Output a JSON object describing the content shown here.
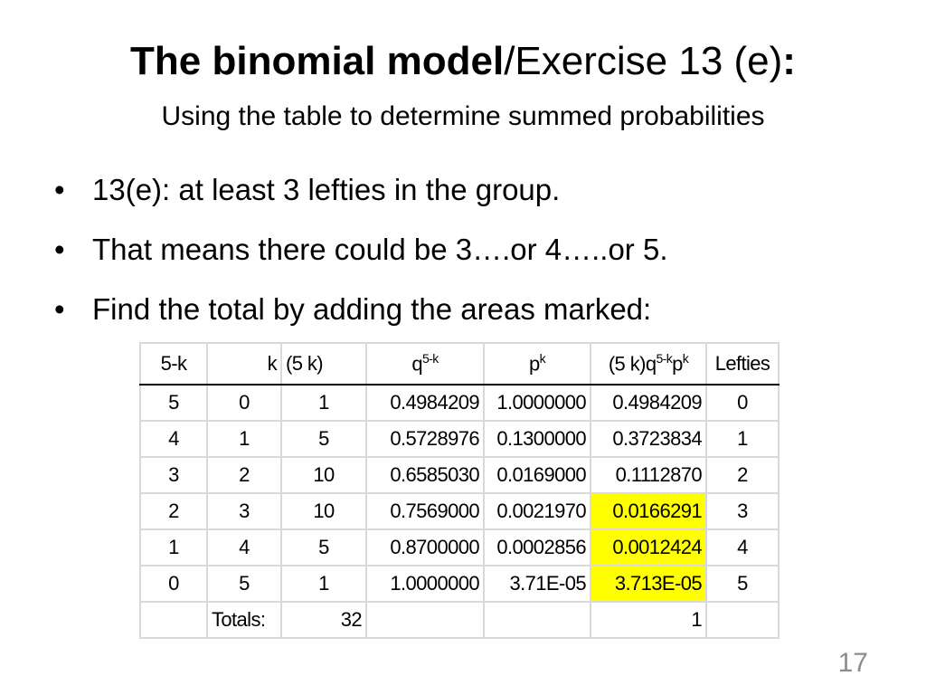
{
  "title": {
    "bold": "The binomial model",
    "rest_before_colon": "/Exercise 13 (e)",
    "colon": ":"
  },
  "subtitle": "Using the table to determine summed probabilities",
  "bullets": [
    "13(e): at least 3 lefties in the group.",
    "That means there could be 3….or 4…..or 5.",
    "Find the total by adding the areas marked:"
  ],
  "table": {
    "headers": {
      "col_5k": "5-k",
      "col_k": "k",
      "col_choose": "(5   k)",
      "col_q_base": "q",
      "col_q_sup": "5-k",
      "col_p_base": "p",
      "col_p_sup": "k",
      "col_prod_a": "(5 k)q",
      "col_prod_sup1": "5-k",
      "col_prod_b": "p",
      "col_prod_sup2": "k",
      "col_lefties": "Lefties"
    },
    "rows": [
      {
        "c1": "5",
        "c2": "0",
        "c3": "1",
        "c4": "0.4984209",
        "c5": "1.0000000",
        "c6": "0.4984209",
        "c7": "0",
        "highlight": false
      },
      {
        "c1": "4",
        "c2": "1",
        "c3": "5",
        "c4": "0.5728976",
        "c5": "0.1300000",
        "c6": "0.3723834",
        "c7": "1",
        "highlight": false
      },
      {
        "c1": "3",
        "c2": "2",
        "c3": "10",
        "c4": "0.6585030",
        "c5": "0.0169000",
        "c6": "0.1112870",
        "c7": "2",
        "highlight": false
      },
      {
        "c1": "2",
        "c2": "3",
        "c3": "10",
        "c4": "0.7569000",
        "c5": "0.0021970",
        "c6": "0.0166291",
        "c7": "3",
        "highlight": true
      },
      {
        "c1": "1",
        "c2": "4",
        "c3": "5",
        "c4": "0.8700000",
        "c5": "0.0002856",
        "c6": "0.0012424",
        "c7": "4",
        "highlight": true
      },
      {
        "c1": "0",
        "c2": "5",
        "c3": "1",
        "c4": "1.0000000",
        "c5": "3.71E-05",
        "c6": "3.713E-05",
        "c7": "5",
        "highlight": true
      }
    ],
    "totals": {
      "label": "Totals:",
      "choose_total": "32",
      "prob_total": "1"
    },
    "highlight_color": "#ffff00"
  },
  "page_number": "17"
}
